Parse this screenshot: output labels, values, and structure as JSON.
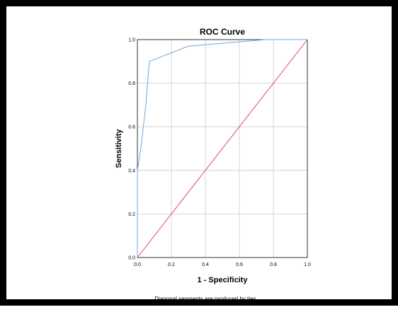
{
  "chart_data": {
    "type": "line",
    "title": "ROC Curve",
    "xlabel": "1 - Specificity",
    "ylabel": "Sensitivity",
    "xlim": [
      0,
      1
    ],
    "ylim": [
      0,
      1
    ],
    "grid": true,
    "x_ticks": [
      "0.0",
      "0.2",
      "0.4",
      "0.6",
      "0.8",
      "1.0"
    ],
    "y_ticks": [
      "0.0",
      "0.2",
      "0.4",
      "0.6",
      "0.8",
      "1.0"
    ],
    "footnote": "Diagonal segments are produced by ties.",
    "series": [
      {
        "color": "#6fa8dc",
        "x": [
          0.0,
          0.0,
          0.0,
          0.02,
          0.05,
          0.07,
          0.3,
          0.6,
          0.75,
          1.0
        ],
        "y": [
          0.0,
          0.2,
          0.4,
          0.5,
          0.7,
          0.9,
          0.97,
          0.99,
          1.0,
          1.0
        ]
      },
      {
        "color": "#d9486e",
        "x": [
          0.0,
          1.0
        ],
        "y": [
          0.0,
          1.0
        ]
      }
    ]
  }
}
